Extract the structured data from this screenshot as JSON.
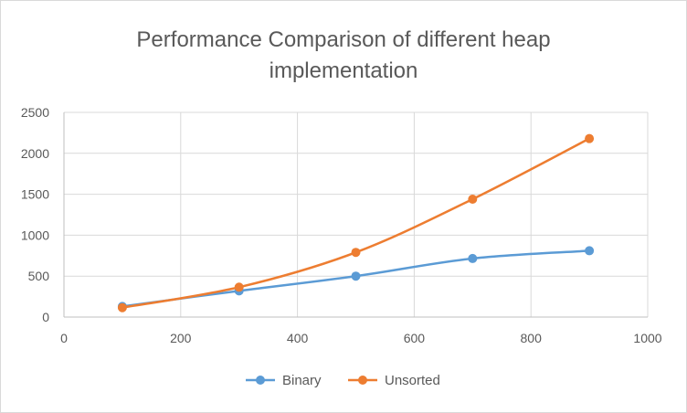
{
  "chart_data": {
    "type": "line",
    "title_lines": [
      "Performance  Comparison of different heap",
      "implementation"
    ],
    "xlabel": "",
    "ylabel": "",
    "xlim": [
      0,
      1000
    ],
    "ylim": [
      0,
      2500
    ],
    "x_ticks": [
      0,
      200,
      400,
      600,
      800,
      1000
    ],
    "y_ticks": [
      0,
      500,
      1000,
      1500,
      2000,
      2500
    ],
    "x_tick_labels": [
      "0",
      "200",
      "400",
      "600",
      "800",
      "1000"
    ],
    "y_tick_labels": [
      "0",
      "500",
      "1000",
      "1500",
      "2000",
      "2500"
    ],
    "grid": true,
    "legend_position": "bottom",
    "series": [
      {
        "name": "Binary",
        "color": "#5B9BD5",
        "x": [
          100,
          300,
          500,
          700,
          900
        ],
        "y": [
          130,
          320,
          500,
          715,
          810
        ]
      },
      {
        "name": "Unsorted",
        "color": "#ED7D31",
        "x": [
          100,
          300,
          500,
          700,
          900
        ],
        "y": [
          115,
          365,
          790,
          1440,
          2180
        ]
      }
    ]
  }
}
